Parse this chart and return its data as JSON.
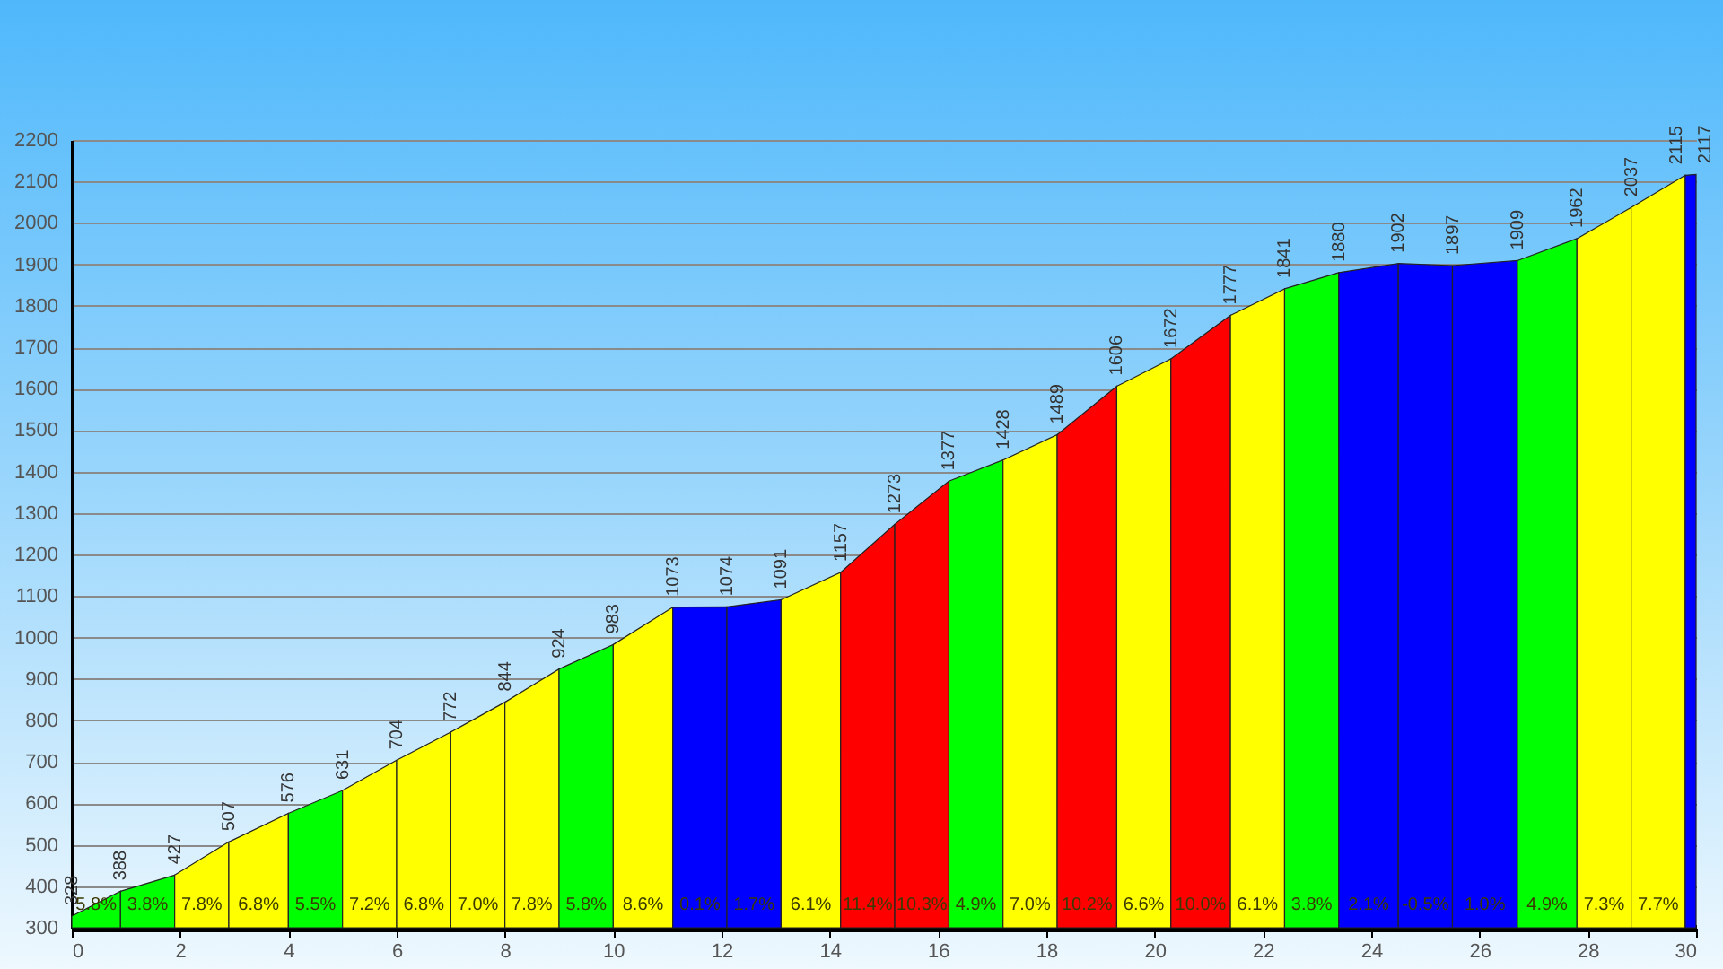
{
  "chart_data": {
    "type": "area",
    "series": [
      {
        "color": "#00ff00",
        "x": [
          0,
          0.9
        ],
        "values": [
          328,
          388
        ],
        "value_labels": [
          "328",
          null
        ]
      },
      {
        "color": "#00ff00",
        "x": [
          0.9,
          1.9
        ],
        "values": [
          388,
          427
        ],
        "value_labels": [
          "388",
          null
        ]
      },
      {
        "color": "#ffff00",
        "x": [
          1.9,
          2.9
        ],
        "values": [
          427,
          507
        ],
        "value_labels": [
          "427",
          null
        ]
      },
      {
        "color": "#ffff00",
        "x": [
          2.9,
          4.0
        ],
        "values": [
          507,
          576
        ],
        "value_labels": [
          "507",
          null
        ]
      },
      {
        "color": "#00ff00",
        "x": [
          4.0,
          5.0
        ],
        "values": [
          576,
          631
        ],
        "value_labels": [
          "576",
          null
        ]
      },
      {
        "color": "#ffff00",
        "x": [
          5.0,
          6.0
        ],
        "values": [
          631,
          704
        ],
        "value_labels": [
          "631",
          null
        ]
      },
      {
        "color": "#ffff00",
        "x": [
          6.0,
          7.0
        ],
        "values": [
          704,
          772
        ],
        "value_labels": [
          "704",
          null
        ]
      },
      {
        "color": "#ffff00",
        "x": [
          7.0,
          8.0
        ],
        "values": [
          772,
          844
        ],
        "value_labels": [
          "772",
          null
        ]
      },
      {
        "color": "#ffff00",
        "x": [
          8.0,
          9.0
        ],
        "values": [
          844,
          924
        ],
        "value_labels": [
          "844",
          null
        ]
      },
      {
        "color": "#00ff00",
        "x": [
          9.0,
          10.0
        ],
        "values": [
          924,
          983
        ],
        "value_labels": [
          "924",
          null
        ]
      },
      {
        "color": "#ffff00",
        "x": [
          10.0,
          11.1
        ],
        "values": [
          983,
          1073
        ],
        "value_labels": [
          "983",
          null
        ]
      },
      {
        "color": "#0000ff",
        "x": [
          11.1,
          12.1
        ],
        "values": [
          1073,
          1074
        ],
        "value_labels": [
          "1073",
          null
        ]
      },
      {
        "color": "#0000ff",
        "x": [
          12.1,
          13.1
        ],
        "values": [
          1074,
          1091
        ],
        "value_labels": [
          "1074",
          null
        ]
      },
      {
        "color": "#ffff00",
        "x": [
          13.1,
          14.2
        ],
        "values": [
          1091,
          1157
        ],
        "value_labels": [
          "1091",
          null
        ]
      },
      {
        "color": "#ff0000",
        "x": [
          14.2,
          15.2
        ],
        "values": [
          1157,
          1273
        ],
        "value_labels": [
          "1157",
          null
        ]
      },
      {
        "color": "#ff0000",
        "x": [
          15.2,
          16.2
        ],
        "values": [
          1273,
          1377
        ],
        "value_labels": [
          "1273",
          null
        ]
      },
      {
        "color": "#00ff00",
        "x": [
          16.2,
          17.2
        ],
        "values": [
          1377,
          1428
        ],
        "value_labels": [
          "1377",
          null
        ]
      },
      {
        "color": "#ffff00",
        "x": [
          17.2,
          18.2
        ],
        "values": [
          1428,
          1489
        ],
        "value_labels": [
          "1428",
          null
        ]
      },
      {
        "color": "#ff0000",
        "x": [
          18.2,
          19.3
        ],
        "values": [
          1489,
          1606
        ],
        "value_labels": [
          "1489",
          null
        ]
      },
      {
        "color": "#ffff00",
        "x": [
          19.3,
          20.3
        ],
        "values": [
          1606,
          1672
        ],
        "value_labels": [
          "1606",
          null
        ]
      },
      {
        "color": "#ff0000",
        "x": [
          20.3,
          21.4
        ],
        "values": [
          1672,
          1777
        ],
        "value_labels": [
          "1672",
          null
        ]
      },
      {
        "color": "#ffff00",
        "x": [
          21.4,
          22.4
        ],
        "values": [
          1777,
          1841
        ],
        "value_labels": [
          "1777",
          null
        ]
      },
      {
        "color": "#00ff00",
        "x": [
          22.4,
          23.4
        ],
        "values": [
          1841,
          1880
        ],
        "value_labels": [
          "1841",
          null
        ]
      },
      {
        "color": "#0000ff",
        "x": [
          23.4,
          24.5
        ],
        "values": [
          1880,
          1902
        ],
        "value_labels": [
          "1880",
          null
        ]
      },
      {
        "color": "#0000ff",
        "x": [
          24.5,
          25.5
        ],
        "values": [
          1902,
          1897
        ],
        "value_labels": [
          "1902",
          null
        ]
      },
      {
        "color": "#0000ff",
        "x": [
          25.5,
          26.7
        ],
        "values": [
          1897,
          1909
        ],
        "value_labels": [
          "1897",
          null
        ]
      },
      {
        "color": "#00ff00",
        "x": [
          26.7,
          27.8
        ],
        "values": [
          1909,
          1962
        ],
        "value_labels": [
          "1909",
          null
        ]
      },
      {
        "color": "#ffff00",
        "x": [
          27.8,
          28.8
        ],
        "values": [
          1962,
          2037
        ],
        "value_labels": [
          "1962",
          null
        ]
      },
      {
        "color": "#ffff00",
        "x": [
          28.8,
          29.8
        ],
        "values": [
          2037,
          2115
        ],
        "value_labels": [
          "2037",
          null
        ]
      },
      {
        "color": "#0000ff",
        "x": [
          29.8,
          30.0
        ],
        "values": [
          2115,
          2117
        ],
        "value_labels": [
          "2115",
          "2117"
        ]
      }
    ],
    "annotations": [
      "5.8%",
      "3.8%",
      "7.8%",
      "6.8%",
      "5.5%",
      "7.2%",
      "6.8%",
      "7.0%",
      "7.8%",
      "5.8%",
      "8.6%",
      "0.1%",
      "1.7%",
      "6.1%",
      "11.4%",
      "10.3%",
      "4.9%",
      "7.0%",
      "10.2%",
      "6.6%",
      "10.0%",
      "6.1%",
      "3.8%",
      "2.1%",
      "-0.5%",
      "1.0%",
      "4.9%",
      "7.3%",
      "7.7%"
    ],
    "xlim": [
      0,
      30
    ],
    "xticks": [
      0,
      2,
      4,
      6,
      8,
      10,
      12,
      14,
      16,
      18,
      20,
      22,
      24,
      26,
      28,
      30
    ],
    "ylim": [
      300,
      2200
    ],
    "yticks": [
      300,
      400,
      500,
      600,
      700,
      800,
      900,
      1000,
      1100,
      1200,
      1300,
      1400,
      1500,
      1600,
      1700,
      1800,
      1900,
      2000,
      2100,
      2200
    ],
    "grid": "y"
  }
}
